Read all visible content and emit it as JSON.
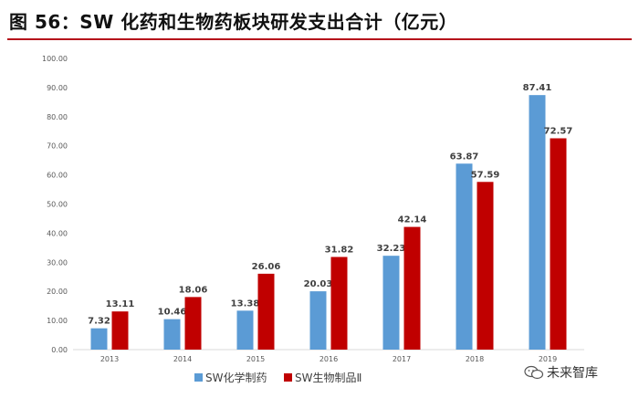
{
  "figure": {
    "title": "图 56：SW 化药和生物药板块研发支出合计（亿元）"
  },
  "colors": {
    "accent": "#b5121b",
    "series1": "#5b9bd5",
    "series2": "#c00000"
  },
  "watermark": {
    "text": "未来智库",
    "icon": "wechat-bubble-icon"
  },
  "chart_data": {
    "type": "bar",
    "title": "",
    "xlabel": "",
    "ylabel": "",
    "categories": [
      "2013",
      "2014",
      "2015",
      "2016",
      "2017",
      "2018",
      "2019"
    ],
    "series": [
      {
        "name": "SW化学制药",
        "values": [
          7.32,
          10.46,
          13.38,
          20.03,
          32.23,
          63.87,
          87.41
        ],
        "color": "#5b9bd5"
      },
      {
        "name": "SW生物制品Ⅱ",
        "values": [
          13.11,
          18.06,
          26.06,
          31.82,
          42.14,
          57.59,
          72.57
        ],
        "color": "#c00000"
      }
    ],
    "ylim": [
      0,
      100
    ],
    "yticks": [
      "0.00",
      "10.00",
      "20.00",
      "30.00",
      "40.00",
      "50.00",
      "60.00",
      "70.00",
      "80.00",
      "90.00",
      "100.00"
    ],
    "grid": false,
    "legend": "bottom-center"
  }
}
